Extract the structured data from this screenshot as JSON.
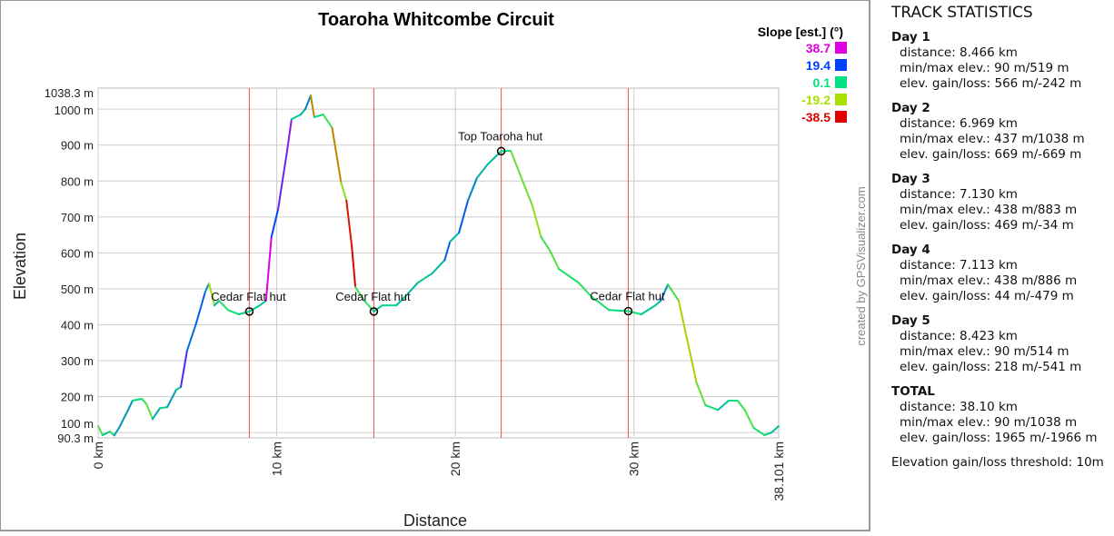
{
  "chart_data": {
    "type": "line",
    "title": "Toaroha Whitcombe Circuit",
    "xlabel": "Distance",
    "ylabel": "Elevation",
    "xlim": [
      0,
      38.101
    ],
    "ylim": [
      90.3,
      1038.3
    ],
    "x_ticks": [
      "0 km",
      "10 km",
      "20 km",
      "30 km",
      "38.101 km"
    ],
    "x_tick_values": [
      0,
      10,
      20,
      30,
      38.101
    ],
    "y_ticks": [
      "90.3 m",
      "100 m",
      "200 m",
      "300 m",
      "400 m",
      "500 m",
      "600 m",
      "700 m",
      "800 m",
      "900 m",
      "1000 m",
      "1038.3 m"
    ],
    "y_tick_values": [
      90.3,
      100,
      200,
      300,
      400,
      500,
      600,
      700,
      800,
      900,
      1000,
      1038.3
    ],
    "grid": true,
    "legend": {
      "title": "Slope [est.] (°)",
      "placement": "top-right",
      "entries": [
        {
          "label": "38.7",
          "color": "#e000e0"
        },
        {
          "label": "19.4",
          "color": "#0040ff"
        },
        {
          "label": "0.1",
          "color": "#00e080"
        },
        {
          "label": "-19.2",
          "color": "#a8e000"
        },
        {
          "label": "-38.5",
          "color": "#e00000"
        }
      ]
    },
    "series": [
      {
        "name": "elevation",
        "x": [
          0,
          0.25,
          0.66,
          0.9,
          1.17,
          1.68,
          1.93,
          2.44,
          2.7,
          3.05,
          3.46,
          3.87,
          4.37,
          4.63,
          4.98,
          5.49,
          6.0,
          6.21,
          6.51,
          6.77,
          7.27,
          7.88,
          8.466,
          9.05,
          9.4,
          9.7,
          10.07,
          10.58,
          10.83,
          11.34,
          11.6,
          11.9,
          12.1,
          12.6,
          13.1,
          13.6,
          13.9,
          14.2,
          14.4,
          14.9,
          15.435,
          15.9,
          16.7,
          17.2,
          17.9,
          18.7,
          19.4,
          19.7,
          20.2,
          20.7,
          21.2,
          21.8,
          22.565,
          23.1,
          23.8,
          24.3,
          24.8,
          25.3,
          25.8,
          26.9,
          27.6,
          28.6,
          29.678,
          30.4,
          31.2,
          31.5,
          31.9,
          32.5,
          33.0,
          33.5,
          34.0,
          34.7,
          35.3,
          35.8,
          36.2,
          36.7,
          37.3,
          37.7,
          38.101
        ],
        "y": [
          118,
          93,
          103,
          92,
          113,
          163,
          189,
          194,
          180,
          138,
          168,
          171,
          219,
          227,
          328,
          404,
          492,
          515,
          454,
          467,
          441,
          429,
          437,
          454,
          467,
          644,
          720,
          884,
          972,
          985,
          1000,
          1038,
          978,
          985,
          948,
          796,
          746,
          619,
          505,
          467,
          437,
          454,
          454,
          479,
          517,
          543,
          580,
          631,
          656,
          745,
          808,
          846,
          883,
          884,
          796,
          733,
          644,
          606,
          555,
          517,
          479,
          441,
          438,
          429,
          454,
          467,
          512,
          467,
          353,
          239,
          176,
          163,
          189,
          189,
          163,
          113,
          93,
          100,
          118
        ]
      }
    ],
    "waypoints": [
      {
        "label": "Cedar Flat hut",
        "km": 8.466,
        "elev": 437
      },
      {
        "label": "Cedar Flat hut",
        "km": 15.435,
        "elev": 437
      },
      {
        "label": "Top Toaroha hut",
        "km": 22.565,
        "elev": 883
      },
      {
        "label": "Cedar Flat hut",
        "km": 29.678,
        "elev": 438
      }
    ],
    "day_boundaries_km": [
      8.466,
      15.435,
      22.565,
      29.678
    ],
    "credit": "created by GPSVisualizer.com"
  },
  "stats": {
    "title": "TRACK STATISTICS",
    "days": [
      {
        "name": "Day 1",
        "distance": "distance: 8.466 km",
        "minmax": "min/max elev.: 90 m/519 m",
        "gain": "elev. gain/loss: 566 m/-242 m"
      },
      {
        "name": "Day 2",
        "distance": "distance: 6.969 km",
        "minmax": "min/max elev.: 437 m/1038 m",
        "gain": "elev. gain/loss: 669 m/-669 m"
      },
      {
        "name": "Day 3",
        "distance": "distance: 7.130 km",
        "minmax": "min/max elev.: 438 m/883 m",
        "gain": "elev. gain/loss: 469 m/-34 m"
      },
      {
        "name": "Day 4",
        "distance": "distance: 7.113 km",
        "minmax": "min/max elev.: 438 m/886 m",
        "gain": "elev. gain/loss: 44 m/-479 m"
      },
      {
        "name": "Day 5",
        "distance": "distance: 8.423 km",
        "minmax": "min/max elev.: 90 m/514 m",
        "gain": "elev. gain/loss: 218 m/-541 m"
      },
      {
        "name": "TOTAL",
        "distance": "distance: 38.10 km",
        "minmax": "min/max elev.: 90 m/1038 m",
        "gain": "elev. gain/loss: 1965 m/-1966 m"
      }
    ],
    "threshold": "Elevation gain/loss threshold: 10m"
  }
}
